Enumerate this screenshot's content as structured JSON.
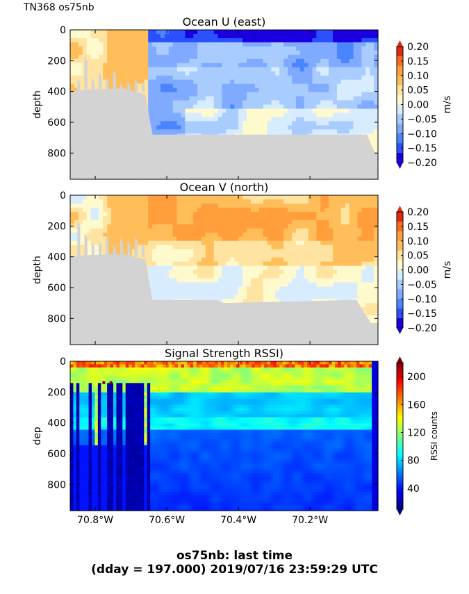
{
  "header": {
    "cruise_label": "TN368 os75nb"
  },
  "footer": {
    "line1": "os75nb: last time",
    "line2": "(dday = 197.000) 2019/07/16 23:59:29 UTC"
  },
  "colors": {
    "terrain": "#d3d3d3",
    "jet_stops": [
      "#00007f",
      "#0000ff",
      "#007fff",
      "#00ffff",
      "#7fff7f",
      "#ffff00",
      "#ff7f00",
      "#ff0000",
      "#7f0000"
    ],
    "velocity_levels": [
      "#1a00e0",
      "#2a50ff",
      "#4a84ff",
      "#7faaff",
      "#a9ccff",
      "#d8ecff",
      "#fffacd",
      "#ffe3a0",
      "#ffbe5a",
      "#ff9e3a",
      "#ff6a20",
      "#e02a10"
    ]
  },
  "chart_data": [
    {
      "type": "heatmap",
      "title": "Ocean U (east)",
      "xlabel": "",
      "ylabel": "depth",
      "xlim": [
        -70.87,
        -70.01
      ],
      "ylim": [
        970,
        0
      ],
      "x_ticks": [
        -70.8,
        -70.6,
        -70.4,
        -70.2
      ],
      "x_tick_labels": [],
      "y_ticks": [
        0,
        200,
        400,
        600,
        800
      ],
      "y_tick_labels": [
        "0",
        "200",
        "400",
        "600",
        "800"
      ],
      "colorbar": {
        "label": "m/s",
        "range": [
          -0.2,
          0.2
        ],
        "ticks": [
          "0.20",
          "0.15",
          "0.10",
          "0.05",
          "0.00",
          "−0.05",
          "−0.10",
          "−0.15",
          "−0.20"
        ]
      },
      "pattern": "u",
      "bottom_depth_profile": [
        [
          -70.87,
          400
        ],
        [
          -70.83,
          390
        ],
        [
          -70.72,
          380
        ],
        [
          -70.66,
          420
        ],
        [
          -70.64,
          680
        ],
        [
          -70.04,
          680
        ],
        [
          -70.03,
          740
        ],
        [
          -70.02,
          790
        ],
        [
          -70.01,
          800
        ]
      ]
    },
    {
      "type": "heatmap",
      "title": "Ocean V (north)",
      "xlabel": "",
      "ylabel": "depth",
      "xlim": [
        -70.87,
        -70.01
      ],
      "ylim": [
        970,
        0
      ],
      "x_ticks": [
        -70.8,
        -70.6,
        -70.4,
        -70.2
      ],
      "x_tick_labels": [],
      "y_ticks": [
        0,
        200,
        400,
        600,
        800
      ],
      "y_tick_labels": [
        "0",
        "200",
        "400",
        "600",
        "800"
      ],
      "colorbar": {
        "label": "m/s",
        "range": [
          -0.2,
          0.2
        ],
        "ticks": [
          "0.20",
          "0.15",
          "0.10",
          "0.05",
          "0.00",
          "−0.05",
          "−0.10",
          "−0.15",
          "−0.20"
        ]
      },
      "pattern": "v",
      "bottom_depth_profile": [
        [
          -70.87,
          400
        ],
        [
          -70.83,
          390
        ],
        [
          -70.72,
          380
        ],
        [
          -70.66,
          420
        ],
        [
          -70.64,
          680
        ],
        [
          -70.46,
          680
        ],
        [
          -70.44,
          700
        ],
        [
          -70.07,
          680
        ],
        [
          -70.03,
          830
        ],
        [
          -70.01,
          830
        ]
      ]
    },
    {
      "type": "heatmap",
      "title": "Signal Strength RSSI)",
      "xlabel": "",
      "ylabel": "dep",
      "xlim": [
        -70.87,
        -70.01
      ],
      "ylim": [
        970,
        0
      ],
      "x_ticks": [
        -70.8,
        -70.6,
        -70.4,
        -70.2
      ],
      "x_tick_labels": [
        "70.8°W",
        "70.6°W",
        "70.4°W",
        "70.2°W"
      ],
      "y_ticks": [
        0,
        200,
        400,
        600,
        800
      ],
      "y_tick_labels": [
        "0",
        "200",
        "400",
        "600",
        "800"
      ],
      "colorbar": {
        "label": "RSSI counts",
        "range": [
          10,
          220
        ],
        "ticks": [
          "200",
          "160",
          "120",
          "80",
          "40"
        ],
        "tick_values": [
          200,
          160,
          120,
          80,
          40
        ]
      },
      "pattern": "rssi"
    }
  ]
}
